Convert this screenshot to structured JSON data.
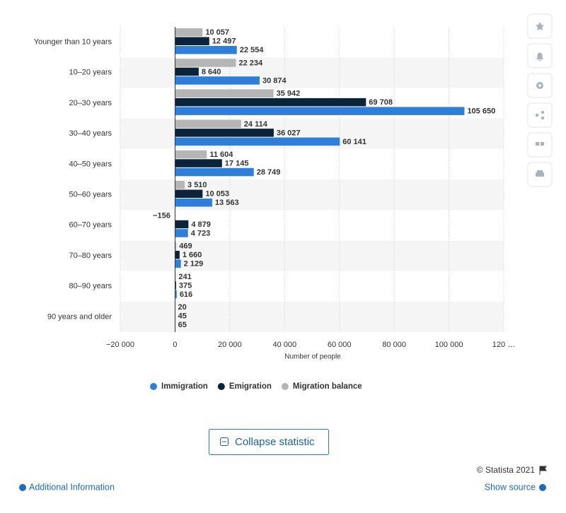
{
  "chart_data": {
    "type": "hbar",
    "x_label": "Number of people",
    "categories": [
      "Younger than 10 years",
      "10–20 years",
      "20–30 years",
      "30–40 years",
      "40–50 years",
      "50–60 years",
      "60–70 years",
      "70–80 years",
      "80–90 years",
      "90 years and older"
    ],
    "series": [
      {
        "name": "Immigration",
        "color": "#2f7ed8",
        "values": [
          22554,
          30874,
          105650,
          60141,
          28749,
          13563,
          4723,
          2129,
          616,
          65
        ],
        "value_labels": [
          "22 554",
          "30 874",
          "105 650",
          "60 141",
          "28 749",
          "13 563",
          "4 723",
          "2 129",
          "616",
          "65"
        ]
      },
      {
        "name": "Emigration",
        "color": "#0d233a",
        "values": [
          12497,
          8640,
          69708,
          36027,
          17145,
          10053,
          4879,
          1660,
          375,
          45
        ],
        "value_labels": [
          "12 497",
          "8 640",
          "69 708",
          "36 027",
          "17 145",
          "10 053",
          "4 879",
          "1 660",
          "375",
          "45"
        ]
      },
      {
        "name": "Migration balance",
        "color": "#b5b5b5",
        "values": [
          10057,
          22234,
          35942,
          24114,
          11604,
          3510,
          -156,
          469,
          241,
          20
        ],
        "value_labels": [
          "10 057",
          "22 234",
          "35 942",
          "24 114",
          "11 604",
          "3 510",
          "−156",
          "469",
          "241",
          "20"
        ]
      }
    ],
    "xlim": [
      -20000,
      120000
    ],
    "xticks": [
      {
        "value": -20000,
        "label": "−20 000"
      },
      0,
      {
        "value": 20000,
        "label": "20 000"
      },
      {
        "value": 40000,
        "label": "40 000"
      },
      {
        "value": 60000,
        "label": "60 000"
      },
      {
        "value": 80000,
        "label": "80 000"
      },
      {
        "value": 100000,
        "label": "100 000"
      },
      {
        "value": 120000,
        "label": "120 …"
      }
    ],
    "grid": true
  },
  "ui": {
    "collapse_button": "Collapse statistic",
    "copyright": "© Statista 2021",
    "additional_info": "Additional Information",
    "show_source": "Show source"
  }
}
